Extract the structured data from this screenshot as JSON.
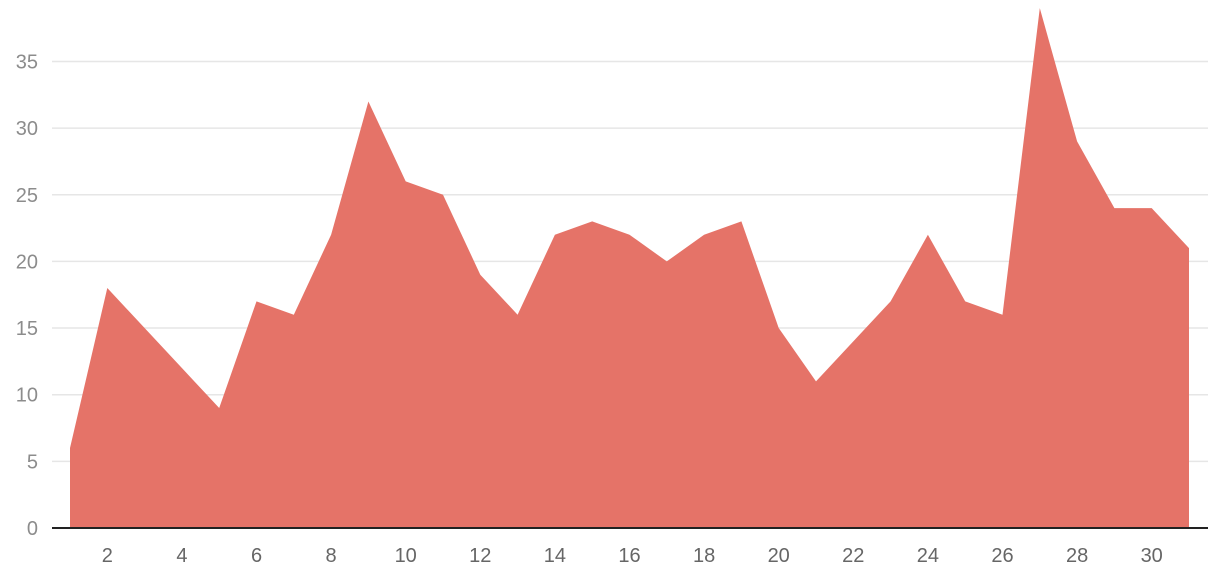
{
  "chart_data": {
    "type": "area",
    "title": "",
    "xlabel": "",
    "ylabel": "",
    "x": [
      1,
      2,
      3,
      4,
      5,
      6,
      7,
      8,
      9,
      10,
      11,
      12,
      13,
      14,
      15,
      16,
      17,
      18,
      19,
      20,
      21,
      22,
      23,
      24,
      25,
      26,
      27,
      28,
      29,
      30,
      31
    ],
    "values": [
      6,
      18,
      15,
      12,
      9,
      17,
      16,
      22,
      32,
      26,
      25,
      19,
      16,
      22,
      23,
      22,
      20,
      22,
      23,
      15,
      11,
      14,
      17,
      22,
      17,
      16,
      39,
      29,
      24,
      24,
      21
    ],
    "x_ticks": [
      2,
      4,
      6,
      8,
      10,
      12,
      14,
      16,
      18,
      20,
      22,
      24,
      26,
      28,
      30
    ],
    "y_ticks": [
      0,
      5,
      10,
      15,
      20,
      25,
      30,
      35
    ],
    "xlim": [
      1,
      31
    ],
    "ylim": [
      0,
      39
    ],
    "grid": true,
    "legend": "none",
    "colors": {
      "area": "#e57368",
      "grid": "#e6e6e6",
      "baseline": "#222222",
      "tick_text": "#8c8c8c"
    }
  }
}
